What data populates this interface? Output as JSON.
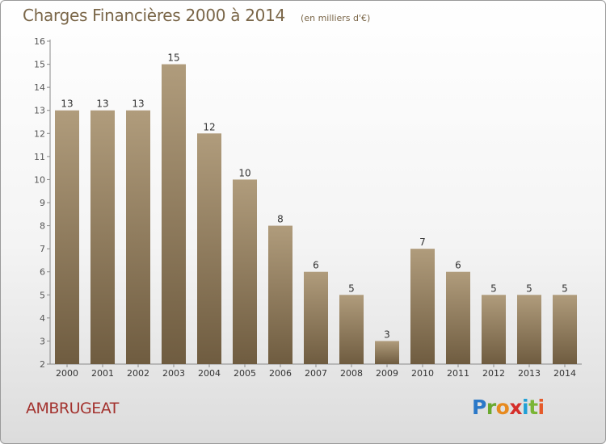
{
  "title": "Charges Financières 2000 à 2014",
  "subtitle": "(en milliers d'€)",
  "commune": "AMBRUGEAT",
  "logo": {
    "letters": [
      "P",
      "r",
      "o",
      "x",
      "i",
      "t",
      "i"
    ],
    "colors": [
      "#2a78c8",
      "#6aa92f",
      "#e78a1f",
      "#d52e2a",
      "#1f9fd6",
      "#7ab535",
      "#e55a2a"
    ]
  },
  "colors": {
    "bar_light": "#b09c7c",
    "bar_dark": "#6f5c40",
    "text": "#7a6648",
    "commune": "#a3322e"
  },
  "chart_data": {
    "type": "bar",
    "title": "Charges Financières 2000 à 2014",
    "subtitle": "(en milliers d'€)",
    "categories": [
      "2000",
      "2001",
      "2002",
      "2003",
      "2004",
      "2005",
      "2006",
      "2007",
      "2008",
      "2009",
      "2010",
      "2011",
      "2012",
      "2013",
      "2014"
    ],
    "values": [
      13,
      13,
      13,
      15,
      12,
      10,
      8,
      6,
      5,
      3,
      7,
      6,
      5,
      5,
      5
    ],
    "ylim": [
      2,
      16
    ],
    "yticks": [
      2,
      3,
      4,
      5,
      6,
      7,
      8,
      9,
      10,
      11,
      12,
      13,
      14,
      15,
      16
    ],
    "xlabel": "",
    "ylabel": "",
    "grid": false,
    "legend": "none"
  }
}
